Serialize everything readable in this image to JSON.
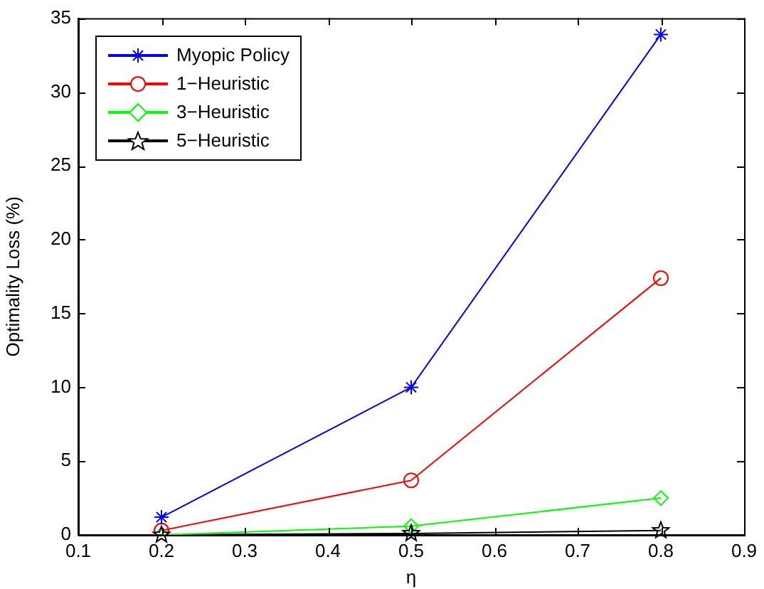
{
  "chart_data": {
    "type": "line",
    "xlabel": "η",
    "ylabel": "Optimality Loss (%)",
    "x": [
      0.2,
      0.5,
      0.8
    ],
    "series": [
      {
        "name": "Myopic Policy",
        "color": "#0000ff",
        "marker": "cross",
        "values": [
          1.2,
          10,
          33.9
        ]
      },
      {
        "name": "1−Heuristic",
        "color": "#ff0000",
        "marker": "circle",
        "values": [
          0.3,
          3.7,
          17.4
        ]
      },
      {
        "name": "3−Heuristic",
        "color": "#00ff00",
        "marker": "diamond",
        "values": [
          0,
          0.6,
          2.5
        ]
      },
      {
        "name": "5−Heuristic",
        "color": "#000000",
        "marker": "star",
        "values": [
          0,
          0.1,
          0.3
        ]
      }
    ],
    "xlim": [
      0.1,
      0.9
    ],
    "xticks": [
      0.1,
      0.2,
      0.3,
      0.4,
      0.5,
      0.6,
      0.7,
      0.8,
      0.9
    ],
    "ylim": [
      0,
      35
    ],
    "yticks": [
      0,
      5,
      10,
      15,
      20,
      25,
      30,
      35
    ],
    "grid": false,
    "legend": "top left",
    "line_style": "solid"
  }
}
